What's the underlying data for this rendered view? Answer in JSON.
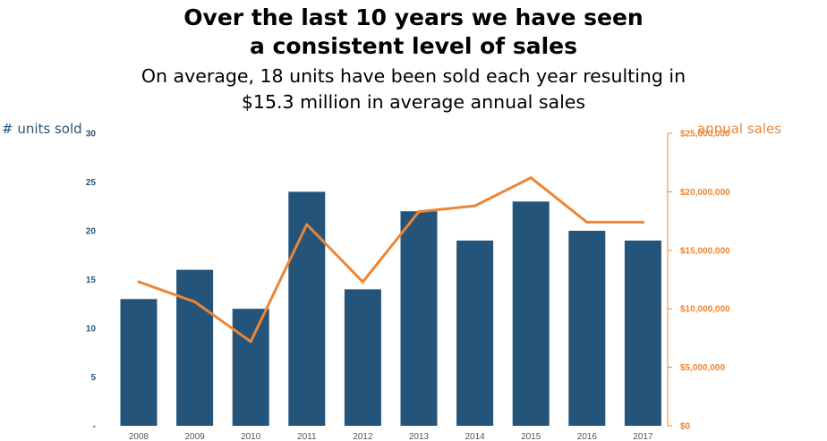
{
  "header": {
    "title_line1": "Over the last 10 years we have seen",
    "title_line2": "a consistent level of sales",
    "subtitle_line1": "On average, 18 units have been sold each year resulting in",
    "subtitle_line2": "$15.3 million in average annual sales"
  },
  "colors": {
    "bars": "#245479",
    "line": "#ED8534",
    "left_axis": "#285479",
    "right_axis": "#ED8534"
  },
  "chart_data": {
    "type": "bar",
    "title": "Over the last 10 years we have seen a consistent level of sales",
    "subtitle": "On average, 18 units have been sold each year resulting in $15.3 million in average annual sales",
    "categories": [
      "2008",
      "2009",
      "2010",
      "2011",
      "2012",
      "2013",
      "2014",
      "2015",
      "2016",
      "2017"
    ],
    "series": [
      {
        "name": "# units sold",
        "type": "bar",
        "axis": "left",
        "values": [
          13,
          16,
          12,
          24,
          14,
          22,
          19,
          23,
          20,
          19
        ]
      },
      {
        "name": "annual sales",
        "type": "line",
        "axis": "right",
        "values": [
          12300000,
          10600000,
          7200000,
          17200000,
          12300000,
          18300000,
          18800000,
          21200000,
          17400000,
          17400000
        ]
      }
    ],
    "ylabel": "# units sold",
    "y2label": "annual sales",
    "ylim": [
      0,
      30
    ],
    "y2lim": [
      0,
      25000000
    ],
    "yticks": [
      "-",
      "5",
      "10",
      "15",
      "20",
      "25",
      "30"
    ],
    "y2ticks": [
      "$0",
      "$5,000,000",
      "$10,000,000",
      "$15,000,000",
      "$20,000,000",
      "$25,000,000"
    ],
    "grid": false,
    "legend": "none"
  }
}
